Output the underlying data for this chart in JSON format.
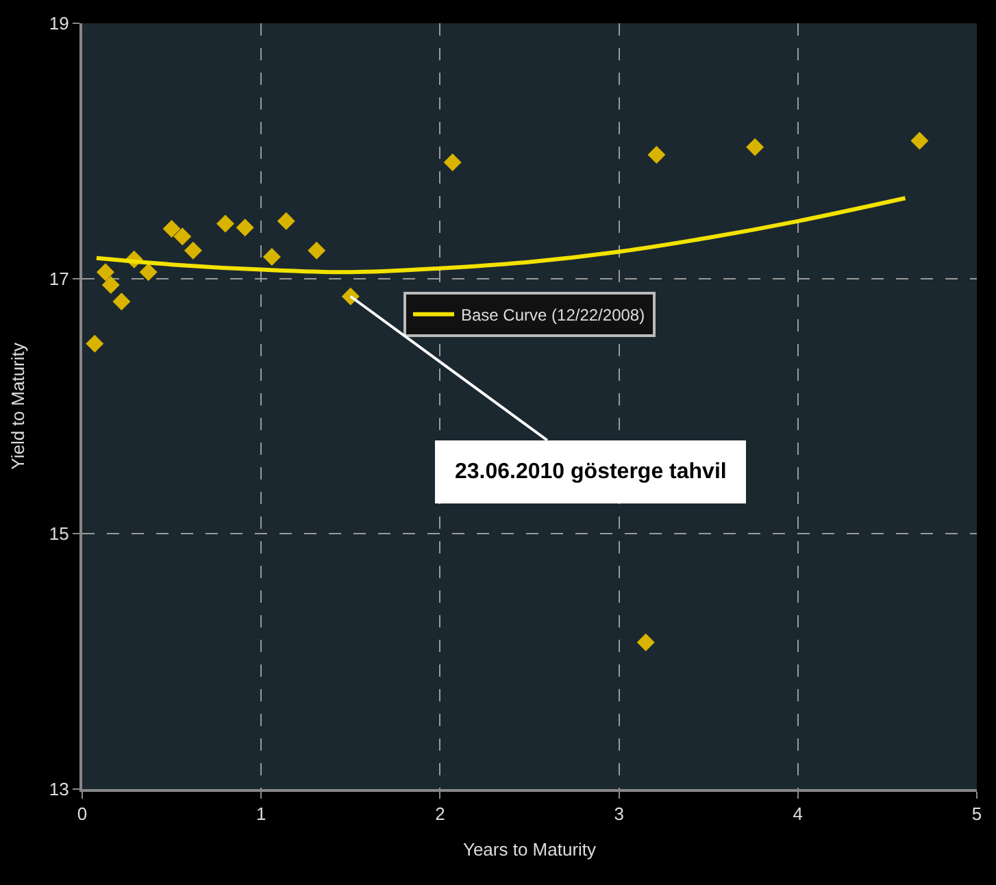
{
  "chart_data": {
    "type": "scatter",
    "xlabel": "Years to Maturity",
    "ylabel": "Yield to Maturity",
    "xlim": [
      0,
      5
    ],
    "xticks": [
      0,
      1,
      2,
      3,
      4,
      5
    ],
    "ylim": [
      13,
      19
    ],
    "yticks": [
      13,
      15,
      17,
      19
    ],
    "grid": true,
    "legend": "center",
    "series": [
      {
        "marker": "diamond",
        "color": "#d8b400",
        "x": [
          0.07,
          0.13,
          0.16,
          0.22,
          0.29,
          0.37,
          0.5,
          0.56,
          0.62,
          0.8,
          0.91,
          1.06,
          1.14,
          1.31,
          1.5,
          2.07,
          3.15,
          3.21,
          3.76,
          4.68
        ],
        "values": [
          16.49,
          17.05,
          16.95,
          16.82,
          17.15,
          17.05,
          17.39,
          17.33,
          17.22,
          17.43,
          17.4,
          17.17,
          17.45,
          17.22,
          16.86,
          17.91,
          14.15,
          17.97,
          18.03,
          18.08
        ]
      },
      {
        "type": "line",
        "name": "Base Curve (12/22/2008)",
        "color": "#f2e200",
        "x": [
          0.08,
          0.5,
          1,
          1.5,
          2,
          2.5,
          3,
          3.5,
          4,
          4.6
        ],
        "values": [
          17.16,
          17.11,
          17.07,
          17.05,
          17.08,
          17.13,
          17.21,
          17.32,
          17.45,
          17.63
        ]
      }
    ],
    "annotations": [
      {
        "text": "23.06.2010 gösterge tahvil",
        "x": 1.5,
        "y": 16.86
      }
    ]
  }
}
